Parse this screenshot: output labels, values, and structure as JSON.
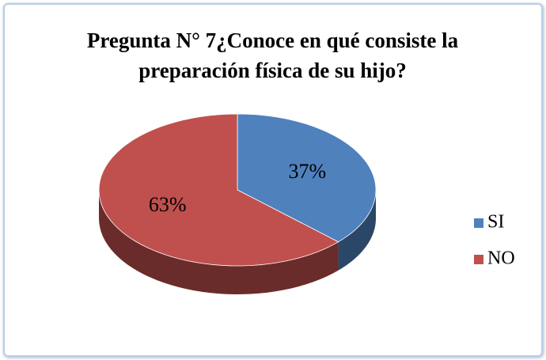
{
  "chart_data": {
    "type": "pie",
    "title": "Pregunta N° 7¿Conoce en qué consiste la preparación física de su hijo?",
    "categories": [
      "SI",
      "NO"
    ],
    "values": [
      37,
      63
    ],
    "value_labels": [
      "37%",
      "63%"
    ],
    "colors": [
      "#4f81bd",
      "#c0504d"
    ],
    "legend": "right"
  }
}
